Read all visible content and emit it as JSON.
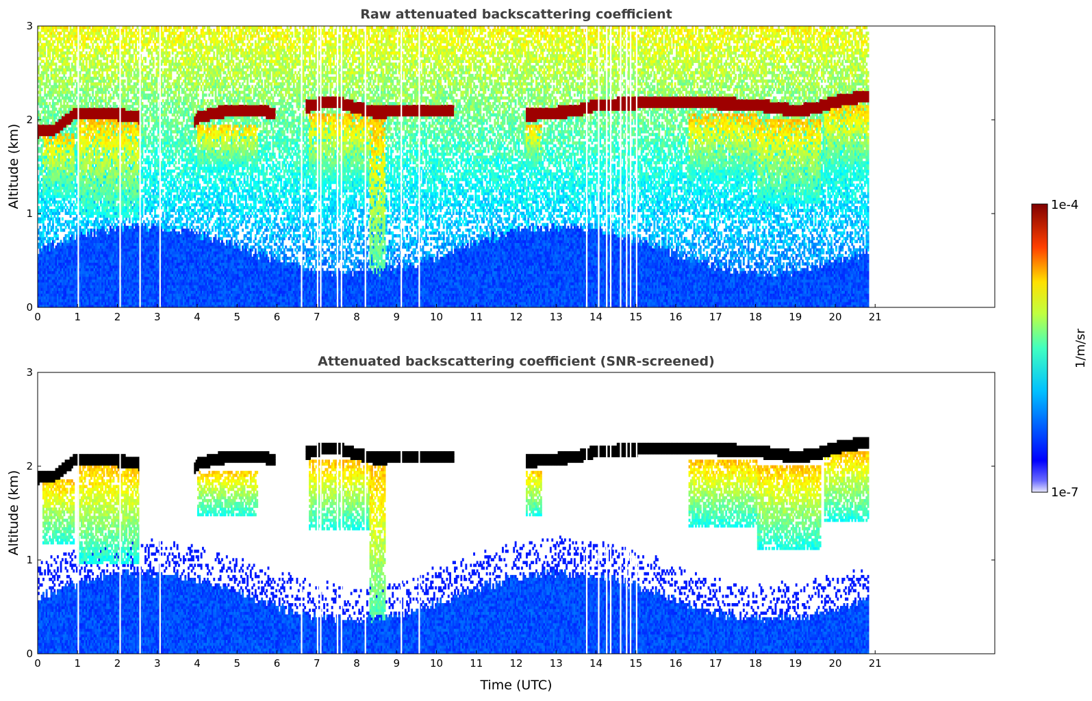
{
  "chart_data": [
    {
      "type": "heatmap",
      "title": "Raw attenuated backscattering coefficient",
      "xlabel": "",
      "ylabel": "Altitude (km)",
      "xlim": [
        0,
        24
      ],
      "ylim": [
        0,
        3
      ],
      "xticks": [
        "0",
        "1",
        "2",
        "3",
        "4",
        "5",
        "6",
        "7",
        "8",
        "9",
        "10",
        "11",
        "12",
        "13",
        "14",
        "15",
        "16",
        "17",
        "18",
        "19",
        "20",
        "21"
      ],
      "yticks": [
        "0",
        "1",
        "2",
        "3"
      ],
      "data_end_hour": 20.8,
      "screened": false
    },
    {
      "type": "heatmap",
      "title": "Attenuated backscattering coefficient (SNR-screened)",
      "xlabel": "Time (UTC)",
      "ylabel": "Altitude (km)",
      "xlim": [
        0,
        24
      ],
      "ylim": [
        0,
        3
      ],
      "xticks": [
        "0",
        "1",
        "2",
        "3",
        "4",
        "5",
        "6",
        "7",
        "8",
        "9",
        "10",
        "11",
        "12",
        "13",
        "14",
        "15",
        "16",
        "17",
        "18",
        "19",
        "20",
        "21"
      ],
      "yticks": [
        "0",
        "1",
        "2",
        "3"
      ],
      "data_end_hour": 20.8,
      "screened": true
    }
  ],
  "colorbar": {
    "max_label": "1e-4",
    "min_label": "1e-7",
    "unit_label": "1/m/sr",
    "colormap": "jet",
    "scale": "log"
  },
  "cloud_layer": {
    "hours": [
      0,
      0.4,
      0.8,
      0.9,
      1.5,
      2.0,
      2.5,
      3.9,
      4.0,
      4.5,
      5.0,
      5.6,
      6.0,
      6.9,
      7.2,
      7.6,
      8.0,
      8.5,
      9.0,
      10.4,
      12.2,
      12.5,
      13.0,
      13.5,
      14.0,
      15.0,
      16.0,
      17.0,
      18.0,
      19.0,
      19.5,
      20.0,
      20.8
    ],
    "base_km": [
      1.8,
      1.82,
      1.95,
      2.0,
      2.0,
      1.98,
      1.95,
      1.88,
      1.95,
      2.0,
      2.03,
      2.02,
      1.98,
      2.08,
      2.12,
      2.1,
      2.05,
      2.0,
      2.02,
      2.02,
      1.97,
      1.98,
      2.0,
      2.02,
      2.08,
      2.1,
      2.12,
      2.1,
      2.08,
      2.02,
      2.05,
      2.12,
      2.18
    ],
    "segments": [
      [
        0,
        2.55
      ],
      [
        3.9,
        5.95
      ],
      [
        6.7,
        10.4
      ],
      [
        12.2,
        20.8
      ]
    ]
  },
  "virga": [
    {
      "start": 0.1,
      "end": 0.9,
      "top_km": 1.85,
      "bottom_km": 1.15
    },
    {
      "start": 1.0,
      "end": 2.55,
      "top_km": 2.0,
      "bottom_km": 0.95
    },
    {
      "start": 4.0,
      "end": 5.5,
      "top_km": 1.95,
      "bottom_km": 1.45
    },
    {
      "start": 6.8,
      "end": 8.3,
      "top_km": 2.05,
      "bottom_km": 1.3
    },
    {
      "start": 8.3,
      "end": 8.7,
      "top_km": 2.0,
      "bottom_km": 0.0
    },
    {
      "start": 12.2,
      "end": 12.6,
      "top_km": 1.95,
      "bottom_km": 1.45
    },
    {
      "start": 16.3,
      "end": 18.0,
      "top_km": 2.05,
      "bottom_km": 1.35
    },
    {
      "start": 18.0,
      "end": 19.6,
      "top_km": 2.0,
      "bottom_km": 1.1
    },
    {
      "start": 19.7,
      "end": 20.8,
      "top_km": 2.15,
      "bottom_km": 1.4
    }
  ],
  "gaps_hours": [
    1.0,
    2.05,
    2.55,
    3.05,
    6.6,
    7.0,
    7.08,
    7.5,
    7.6,
    8.2,
    9.1,
    9.55,
    13.75,
    14.05,
    14.25,
    14.35,
    14.6,
    14.75,
    14.85,
    15.0
  ]
}
